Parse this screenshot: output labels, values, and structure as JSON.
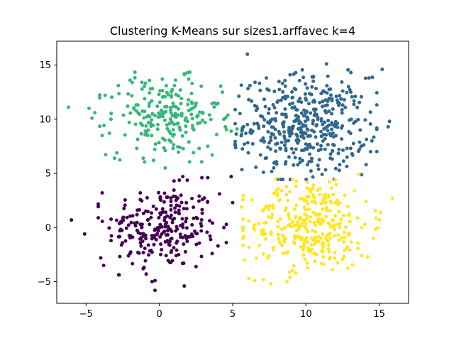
{
  "chart_data": {
    "type": "scatter",
    "title": "Clustering K-Means sur sizes1.arffavec k=4",
    "xlabel": "",
    "ylabel": "",
    "xlim": [
      -7.0,
      17.0
    ],
    "ylim": [
      -7.0,
      17.2
    ],
    "xticks": [
      -5,
      0,
      5,
      10,
      15
    ],
    "yticks": [
      -5,
      0,
      5,
      10,
      15
    ],
    "grid": false,
    "legend": "none",
    "colors": [
      "#440154",
      "#31688e",
      "#35b779",
      "#fde725"
    ],
    "clusters": [
      {
        "color_index": 0,
        "center": [
          0.2,
          0.0
        ],
        "spread": [
          1.9,
          1.9
        ],
        "points": [
          [
            -6.0,
            0.7
          ],
          [
            -5.1,
            -0.6
          ],
          [
            -3.9,
            3.2
          ],
          [
            -4.0,
            -2.8
          ],
          [
            -3.8,
            -3.5
          ],
          [
            -2.0,
            -2.4
          ],
          [
            -1.3,
            3.2
          ],
          [
            -1.1,
            -3.8
          ],
          [
            -0.9,
            -4.3
          ],
          [
            -0.3,
            -4.9
          ],
          [
            -0.5,
            -5.0
          ],
          [
            -0.3,
            -5.8
          ],
          [
            1.7,
            -5.4
          ],
          [
            1.6,
            4.7
          ],
          [
            1.0,
            4.3
          ],
          [
            2.9,
            4.6
          ],
          [
            3.3,
            4.6
          ],
          [
            4.1,
            3.1
          ],
          [
            4.9,
            4.7
          ],
          [
            5.0,
            2.3
          ],
          [
            4.4,
            0.0
          ],
          [
            3.5,
            -1.1
          ],
          [
            4.0,
            -1.7
          ],
          [
            3.6,
            -2.4
          ],
          [
            2.5,
            -3.6
          ],
          [
            -2.5,
            0.8
          ],
          [
            -2.7,
            -0.3
          ],
          [
            -1.5,
            1.6
          ],
          [
            0.5,
            2.8
          ]
        ]
      },
      {
        "color_index": 1,
        "center": [
          10.0,
          9.5
        ],
        "spread": [
          2.1,
          2.2
        ],
        "points": [
          [
            6.0,
            16.0
          ],
          [
            7.3,
            13.8
          ],
          [
            9.3,
            14.3
          ],
          [
            11.4,
            15.1
          ],
          [
            14.3,
            13.8
          ],
          [
            15.2,
            14.6
          ],
          [
            15.7,
            9.8
          ],
          [
            15.6,
            9.3
          ],
          [
            14.5,
            8.0
          ],
          [
            14.4,
            7.0
          ],
          [
            14.1,
            5.8
          ],
          [
            12.3,
            5.8
          ],
          [
            11.1,
            4.9
          ],
          [
            10.1,
            5.8
          ],
          [
            7.8,
            5.5
          ],
          [
            7.1,
            5.1
          ],
          [
            5.8,
            7.7
          ],
          [
            5.9,
            8.7
          ],
          [
            6.0,
            9.5
          ],
          [
            6.1,
            11.8
          ],
          [
            12.9,
            13.0
          ],
          [
            10.5,
            13.9
          ],
          [
            8.4,
            13.3
          ],
          [
            6.9,
            6.7
          ],
          [
            12.8,
            6.5
          ]
        ]
      },
      {
        "color_index": 2,
        "center": [
          0.3,
          10.2
        ],
        "spread": [
          1.9,
          1.8
        ],
        "points": [
          [
            -6.2,
            11.1
          ],
          [
            -4.8,
            11.0
          ],
          [
            -4.6,
            10.1
          ],
          [
            -4.4,
            10.6
          ],
          [
            -3.7,
            12.2
          ],
          [
            -3.3,
            10.0
          ],
          [
            -3.9,
            8.5
          ],
          [
            -2.8,
            13.1
          ],
          [
            -2.0,
            13.6
          ],
          [
            -1.2,
            13.4
          ],
          [
            0.2,
            13.7
          ],
          [
            1.7,
            14.2
          ],
          [
            2.0,
            13.7
          ],
          [
            1.1,
            13.6
          ],
          [
            -1.1,
            6.4
          ],
          [
            -0.4,
            6.2
          ],
          [
            0.4,
            7.1
          ],
          [
            0.4,
            5.5
          ],
          [
            1.4,
            7.4
          ],
          [
            3.6,
            6.7
          ],
          [
            3.3,
            7.5
          ],
          [
            4.3,
            12.5
          ],
          [
            4.4,
            10.0
          ],
          [
            4.5,
            9.3
          ],
          [
            4.9,
            8.9
          ],
          [
            5.3,
            9.1
          ],
          [
            3.9,
            11.4
          ],
          [
            -2.9,
            6.9
          ]
        ]
      },
      {
        "color_index": 3,
        "center": [
          10.3,
          0.3
        ],
        "spread": [
          2.0,
          2.0
        ],
        "points": [
          [
            5.6,
            1.9
          ],
          [
            5.7,
            -1.0
          ],
          [
            5.8,
            -3.0
          ],
          [
            6.1,
            -4.7
          ],
          [
            6.5,
            -4.9
          ],
          [
            7.1,
            -4.8
          ],
          [
            7.6,
            -5.2
          ],
          [
            8.7,
            -5.0
          ],
          [
            8.9,
            -4.6
          ],
          [
            9.3,
            -4.2
          ],
          [
            10.1,
            -3.7
          ],
          [
            11.2,
            -3.4
          ],
          [
            11.8,
            -3.9
          ],
          [
            12.6,
            -2.7
          ],
          [
            13.8,
            -2.6
          ],
          [
            14.2,
            -2.7
          ],
          [
            14.6,
            -1.0
          ],
          [
            15.0,
            0.7
          ],
          [
            15.1,
            1.4
          ],
          [
            15.9,
            2.7
          ],
          [
            14.1,
            2.4
          ],
          [
            13.3,
            3.4
          ],
          [
            12.0,
            4.4
          ],
          [
            11.6,
            4.2
          ],
          [
            10.5,
            3.9
          ],
          [
            10.1,
            4.2
          ],
          [
            8.9,
            3.3
          ],
          [
            8.1,
            3.6
          ],
          [
            7.3,
            2.0
          ],
          [
            6.1,
            0.6
          ],
          [
            6.5,
            -0.2
          ],
          [
            7.4,
            -2.8
          ]
        ]
      }
    ],
    "generated_points_per_cluster": [
      240,
      420,
      200,
      300
    ]
  }
}
